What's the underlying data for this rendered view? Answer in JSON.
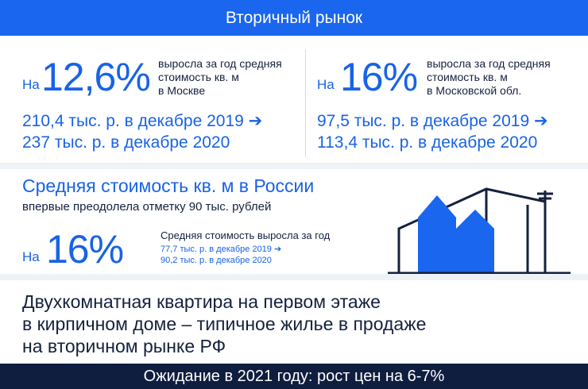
{
  "header": {
    "title": "Вторичный рынок"
  },
  "moscow": {
    "prefix": "На",
    "percent": "12,6%",
    "desc_lines": [
      "выросла за год средняя",
      "стоимость кв. м",
      "в Москве"
    ],
    "price_lines": [
      "210,4 тыс. р. в декабре 2019 ➔",
      "237 тыс. р. в декабре 2020"
    ]
  },
  "region": {
    "prefix": "На",
    "percent": "16%",
    "desc_lines": [
      "выросла за год средняя",
      "стоимость кв. м",
      "в Московской обл."
    ],
    "price_lines": [
      "97,5 тыс. р. в декабре 2019 ➔",
      "113,4 тыс. р. в декабре 2020"
    ]
  },
  "russia": {
    "title": "Средняя стоимость кв. м в России",
    "subtitle": "впервые преодолела отметку 90 тыс. рублей",
    "prefix": "На",
    "percent": "16%",
    "desc": "Средняя стоимость выросла за год",
    "price_lines": [
      "77,7 тыс. р. в декабре 2019 ➔",
      "90,2 тыс. р. в декабре 2020"
    ]
  },
  "typical": {
    "lines": [
      "Двухкомнатная квартира на первом этаже",
      "в кирпичном доме – типичное жилье в продаже",
      "на вторичном рынке РФ"
    ]
  },
  "footer": {
    "text": "Ожидание в 2021 году: рост цен на 6-7%"
  },
  "colors": {
    "accent": "#1a66ee",
    "dark": "#0f1d3f"
  },
  "icons": {
    "illustration": "houses-buildings-icon"
  }
}
